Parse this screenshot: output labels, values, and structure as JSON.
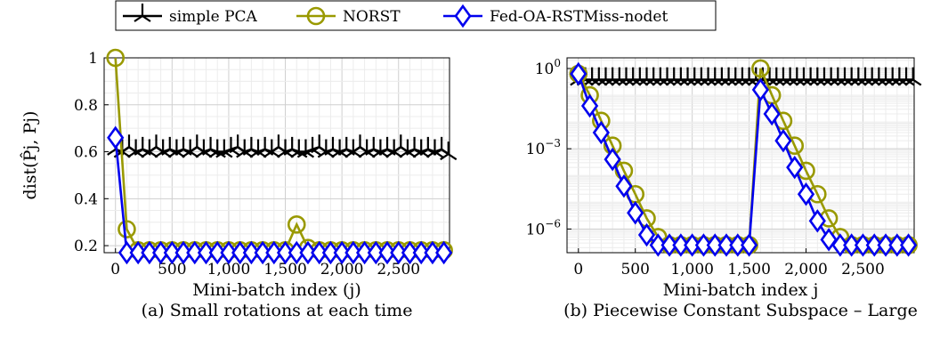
{
  "legend": {
    "entries": [
      {
        "name": "simple PCA",
        "color": "#000000",
        "marker": "tri-cross"
      },
      {
        "name": "NORST",
        "color": "#999900",
        "marker": "circle"
      },
      {
        "name": "Fed-OA-RSTMiss-nodet",
        "color": "#0000ee",
        "marker": "diamond"
      }
    ],
    "placement": "top-center"
  },
  "chart_data": [
    {
      "type": "line",
      "caption": "(a) Small rotations at each time",
      "xlabel": "Mini-batch index (j)",
      "ylabel": "dist(P̂j, Pj)",
      "xlim": [
        -100,
        2950
      ],
      "ylim": [
        0.17,
        1.0
      ],
      "yscale": "linear",
      "grid": true,
      "xticks": [
        0,
        500,
        1000,
        1500,
        2000,
        2500
      ],
      "xtick_labels": [
        "0",
        "500",
        "1,000",
        "1,500",
        "2,000",
        "2,500"
      ],
      "yticks": [
        0.2,
        0.4,
        0.6,
        0.8,
        1
      ],
      "ytick_labels": [
        "0.2",
        "0.4",
        "0.6",
        "0.8",
        "1"
      ],
      "series": [
        {
          "name": "simple PCA",
          "color": "#000000",
          "marker": "tri-cross",
          "x": [
            0,
            60,
            120,
            180,
            240,
            300,
            360,
            420,
            480,
            540,
            600,
            660,
            720,
            780,
            840,
            900,
            960,
            1020,
            1080,
            1140,
            1200,
            1260,
            1320,
            1380,
            1440,
            1500,
            1560,
            1620,
            1680,
            1740,
            1800,
            1860,
            1920,
            1980,
            2040,
            2100,
            2160,
            2220,
            2280,
            2340,
            2400,
            2460,
            2520,
            2580,
            2640,
            2700,
            2760,
            2820,
            2880,
            2940
          ],
          "y": [
            0.61,
            0.6,
            0.62,
            0.6,
            0.61,
            0.6,
            0.62,
            0.6,
            0.61,
            0.6,
            0.61,
            0.6,
            0.62,
            0.6,
            0.61,
            0.6,
            0.6,
            0.61,
            0.62,
            0.6,
            0.61,
            0.6,
            0.61,
            0.6,
            0.62,
            0.6,
            0.61,
            0.6,
            0.6,
            0.61,
            0.62,
            0.6,
            0.61,
            0.6,
            0.61,
            0.6,
            0.62,
            0.6,
            0.61,
            0.6,
            0.61,
            0.6,
            0.62,
            0.6,
            0.61,
            0.6,
            0.61,
            0.6,
            0.61,
            0.59
          ]
        },
        {
          "name": "NORST",
          "color": "#999900",
          "marker": "circle",
          "x": [
            0,
            100,
            200,
            300,
            400,
            500,
            600,
            700,
            800,
            900,
            1000,
            1100,
            1200,
            1300,
            1400,
            1500,
            1600,
            1700,
            1800,
            1900,
            2000,
            2100,
            2200,
            2300,
            2400,
            2500,
            2600,
            2700,
            2800,
            2900
          ],
          "y": [
            1.0,
            0.27,
            0.18,
            0.18,
            0.18,
            0.18,
            0.18,
            0.18,
            0.18,
            0.18,
            0.18,
            0.18,
            0.18,
            0.18,
            0.18,
            0.18,
            0.29,
            0.19,
            0.18,
            0.18,
            0.18,
            0.18,
            0.18,
            0.18,
            0.18,
            0.18,
            0.18,
            0.18,
            0.18,
            0.18
          ]
        },
        {
          "name": "Fed-OA-RSTMiss-nodet",
          "color": "#0000ee",
          "marker": "diamond",
          "x": [
            0,
            100,
            200,
            300,
            400,
            500,
            600,
            700,
            800,
            900,
            1000,
            1100,
            1200,
            1300,
            1400,
            1500,
            1600,
            1700,
            1800,
            1900,
            2000,
            2100,
            2200,
            2300,
            2400,
            2500,
            2600,
            2700,
            2800,
            2900
          ],
          "y": [
            0.66,
            0.17,
            0.17,
            0.17,
            0.17,
            0.17,
            0.17,
            0.17,
            0.17,
            0.17,
            0.17,
            0.17,
            0.17,
            0.17,
            0.17,
            0.17,
            0.17,
            0.17,
            0.17,
            0.17,
            0.17,
            0.17,
            0.17,
            0.17,
            0.17,
            0.17,
            0.17,
            0.17,
            0.17,
            0.17
          ]
        }
      ]
    },
    {
      "type": "line",
      "caption": "(b) Piecewise Constant Subspace – Large",
      "xlabel": "Mini-batch index j",
      "ylabel": "",
      "xlim": [
        -100,
        2950
      ],
      "ylim": [
        1.3e-07,
        2.5
      ],
      "yscale": "log",
      "grid": true,
      "xticks": [
        0,
        500,
        1000,
        1500,
        2000,
        2500
      ],
      "xtick_labels": [
        "0",
        "500",
        "1,000",
        "1,500",
        "2,000",
        "2,500"
      ],
      "yticks": [
        1e-06,
        0.001,
        1
      ],
      "ytick_labels": [
        {
          "base": "10",
          "exp": "−6"
        },
        {
          "base": "10",
          "exp": "−3"
        },
        {
          "base": "10",
          "exp": "0"
        }
      ],
      "series": [
        {
          "name": "simple PCA",
          "color": "#000000",
          "marker": "tri-cross",
          "x": [
            0,
            60,
            120,
            180,
            240,
            300,
            360,
            420,
            480,
            540,
            600,
            660,
            720,
            780,
            840,
            900,
            960,
            1020,
            1080,
            1140,
            1200,
            1260,
            1320,
            1380,
            1440,
            1500,
            1560,
            1620,
            1680,
            1740,
            1800,
            1860,
            1920,
            1980,
            2040,
            2100,
            2160,
            2220,
            2280,
            2340,
            2400,
            2460,
            2520,
            2580,
            2640,
            2700,
            2760,
            2820,
            2880,
            2940
          ],
          "y": [
            0.38,
            0.38,
            0.38,
            0.38,
            0.38,
            0.38,
            0.38,
            0.38,
            0.38,
            0.38,
            0.38,
            0.38,
            0.38,
            0.38,
            0.38,
            0.38,
            0.38,
            0.38,
            0.38,
            0.38,
            0.38,
            0.38,
            0.38,
            0.38,
            0.38,
            0.38,
            0.38,
            0.38,
            0.38,
            0.38,
            0.38,
            0.38,
            0.38,
            0.38,
            0.38,
            0.38,
            0.38,
            0.38,
            0.38,
            0.38,
            0.38,
            0.38,
            0.38,
            0.38,
            0.38,
            0.38,
            0.38,
            0.38,
            0.38,
            0.38
          ]
        },
        {
          "name": "NORST",
          "color": "#999900",
          "marker": "circle",
          "x": [
            0,
            100,
            200,
            300,
            400,
            500,
            600,
            700,
            800,
            900,
            1000,
            1100,
            1200,
            1300,
            1400,
            1500,
            1600,
            1700,
            1800,
            1900,
            2000,
            2100,
            2200,
            2300,
            2400,
            2500,
            2600,
            2700,
            2800,
            2900
          ],
          "y": [
            0.63,
            0.1,
            0.011,
            0.0013,
            0.00015,
            2e-05,
            2.5e-06,
            5e-07,
            2.5e-07,
            2.5e-07,
            2.5e-07,
            2.5e-07,
            2.5e-07,
            2.5e-07,
            2.5e-07,
            2.5e-07,
            1.0,
            0.1,
            0.011,
            0.0013,
            0.00015,
            2e-05,
            2.5e-06,
            5e-07,
            2.5e-07,
            2.5e-07,
            2.5e-07,
            2.5e-07,
            2.5e-07,
            2.5e-07
          ]
        },
        {
          "name": "Fed-OA-RSTMiss-nodet",
          "color": "#0000ee",
          "marker": "diamond",
          "x": [
            0,
            100,
            200,
            300,
            400,
            500,
            600,
            700,
            800,
            900,
            1000,
            1100,
            1200,
            1300,
            1400,
            1500,
            1600,
            1700,
            1800,
            1900,
            2000,
            2100,
            2200,
            2300,
            2400,
            2500,
            2600,
            2700,
            2800,
            2900
          ],
          "y": [
            0.63,
            0.04,
            0.004,
            0.0004,
            4e-05,
            4e-06,
            6e-07,
            2.5e-07,
            2.5e-07,
            2.5e-07,
            2.5e-07,
            2.5e-07,
            2.5e-07,
            2.5e-07,
            2.5e-07,
            2.5e-07,
            0.16,
            0.02,
            0.002,
            0.0002,
            2e-05,
            2e-06,
            4e-07,
            2.5e-07,
            2.5e-07,
            2.5e-07,
            2.5e-07,
            2.5e-07,
            2.5e-07,
            2.5e-07
          ]
        }
      ]
    }
  ]
}
